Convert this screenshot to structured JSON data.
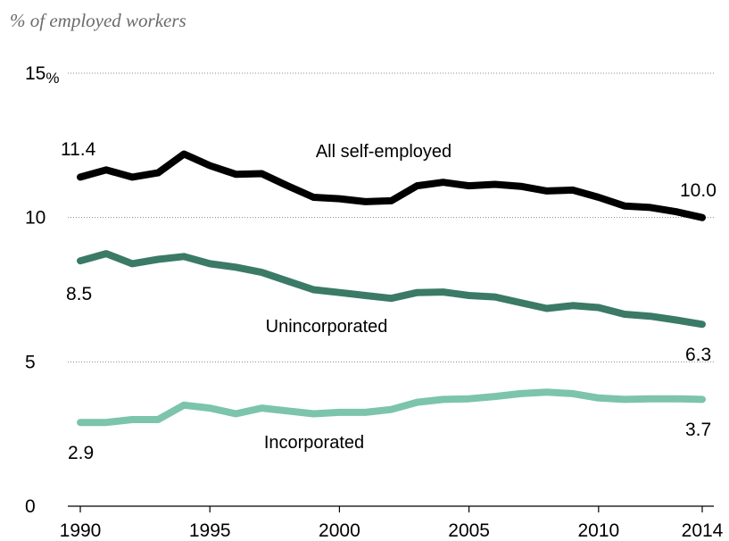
{
  "chart_data": {
    "type": "line",
    "subtitle": "% of employed workers",
    "x": [
      1990,
      1991,
      1992,
      1993,
      1994,
      1995,
      1996,
      1997,
      1998,
      1999,
      2000,
      2001,
      2002,
      2003,
      2004,
      2005,
      2006,
      2007,
      2008,
      2009,
      2010,
      2011,
      2012,
      2013,
      2014
    ],
    "x_ticks": [
      1990,
      1995,
      2000,
      2005,
      2010,
      2014
    ],
    "ylim": [
      0,
      15
    ],
    "y_ticks": [
      0,
      5,
      10,
      15
    ],
    "y_tick_labels": [
      "0",
      "5",
      "10",
      "15"
    ],
    "y_unit": "%",
    "grid": true,
    "series": [
      {
        "name": "All self-employed",
        "color": "#000000",
        "values": [
          11.4,
          11.65,
          11.4,
          11.55,
          12.2,
          11.8,
          11.5,
          11.52,
          11.1,
          10.7,
          10.65,
          10.55,
          10.58,
          11.1,
          11.22,
          11.1,
          11.15,
          11.08,
          10.92,
          10.95,
          10.7,
          10.4,
          10.35,
          10.2,
          10.0
        ],
        "start_label": "11.4",
        "end_label": "10.0"
      },
      {
        "name": "Unincorporated",
        "color": "#3b7a66",
        "values": [
          8.5,
          8.75,
          8.4,
          8.55,
          8.65,
          8.4,
          8.28,
          8.1,
          7.8,
          7.5,
          7.4,
          7.3,
          7.2,
          7.4,
          7.42,
          7.3,
          7.25,
          7.05,
          6.85,
          6.95,
          6.88,
          6.65,
          6.58,
          6.45,
          6.3
        ],
        "start_label": "8.5",
        "end_label": "6.3"
      },
      {
        "name": "Incorporated",
        "color": "#7cc4ac",
        "values": [
          2.9,
          2.9,
          3.0,
          3.0,
          3.5,
          3.4,
          3.2,
          3.4,
          3.3,
          3.2,
          3.25,
          3.25,
          3.35,
          3.6,
          3.7,
          3.72,
          3.8,
          3.9,
          3.95,
          3.9,
          3.75,
          3.7,
          3.72,
          3.72,
          3.7
        ],
        "start_label": "2.9",
        "end_label": "3.7"
      }
    ]
  }
}
